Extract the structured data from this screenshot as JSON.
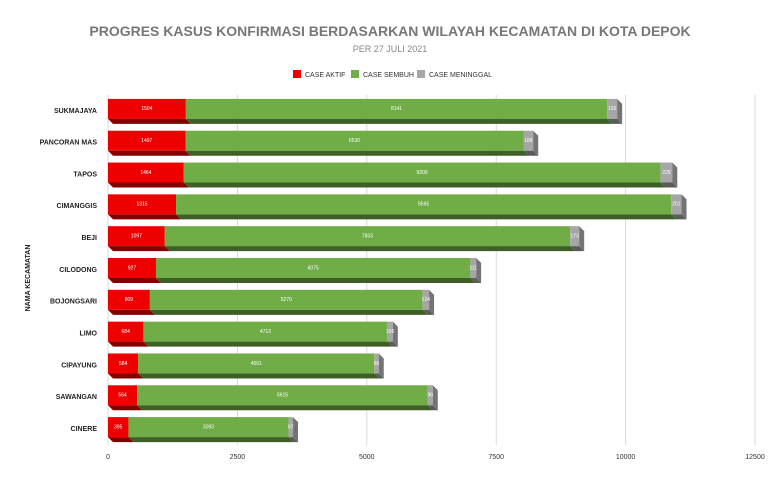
{
  "chart_data": {
    "type": "bar",
    "orientation": "horizontal",
    "stacked": true,
    "title": "PROGRES KASUS KONFIRMASI BERDASARKAN WILAYAH KECAMATAN DI KOTA DEPOK",
    "subtitle": "PER 27 JULI 2021",
    "ylabel": "NAMA KECAMATAN",
    "xlabel": "",
    "xlim": [
      0,
      12500
    ],
    "xticks": [
      "0",
      "2500",
      "5000",
      "7500",
      "10000",
      "12500"
    ],
    "grid": true,
    "legend_position": "top",
    "categories": [
      "SUKMAJAYA",
      "PANCORAN MAS",
      "TAPOS",
      "CIMANGGIS",
      "BEJI",
      "CILODONG",
      "BOJONGSARI",
      "LIMO",
      "CIPAYUNG",
      "SAWANGAN",
      "CINERE"
    ],
    "series": [
      {
        "name": "CASE AKTIF",
        "color": "#ee0000",
        "values": [
          1504,
          1497,
          1464,
          1315,
          1097,
          927,
          809,
          684,
          584,
          564,
          395
        ]
      },
      {
        "name": "CASE SEMBUH",
        "color": "#70ad47",
        "values": [
          8141,
          6530,
          9209,
          9565,
          7833,
          6075,
          5270,
          4713,
          4561,
          5615,
          3093
        ]
      },
      {
        "name": "CASE MENINGGAL",
        "color": "#a6a6a6",
        "values": [
          192,
          188,
          229,
          201,
          173,
          111,
          124,
          106,
          86,
          96,
          87
        ]
      }
    ]
  }
}
